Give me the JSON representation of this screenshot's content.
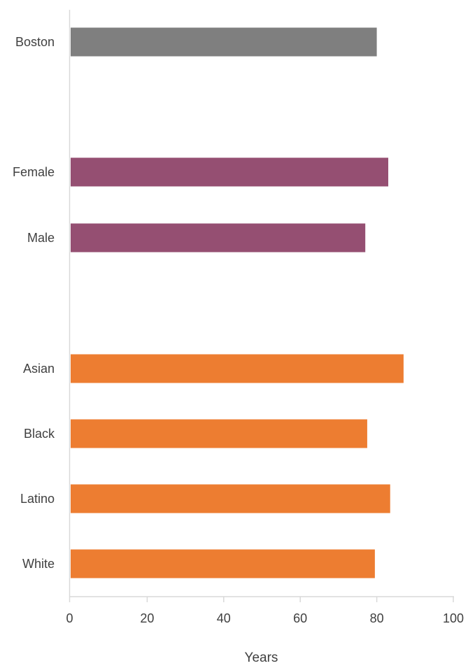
{
  "chart_data": {
    "type": "bar",
    "orientation": "horizontal",
    "categories": [
      "Boston",
      "Female",
      "Male",
      "Asian",
      "Black",
      "Latino",
      "White"
    ],
    "values": [
      80.0,
      83.0,
      77.0,
      87.0,
      77.5,
      83.5,
      79.5
    ],
    "bar_colors": [
      "#7f7f7f",
      "#954f72",
      "#954f72",
      "#ed7d31",
      "#ed7d31",
      "#ed7d31",
      "#ed7d31"
    ],
    "xlabel": "Years",
    "ylabel": "",
    "xlim": [
      0,
      100
    ],
    "xticks": [
      "0",
      "20",
      "40",
      "60",
      "80",
      "100"
    ],
    "grid": false,
    "legend": "none"
  }
}
